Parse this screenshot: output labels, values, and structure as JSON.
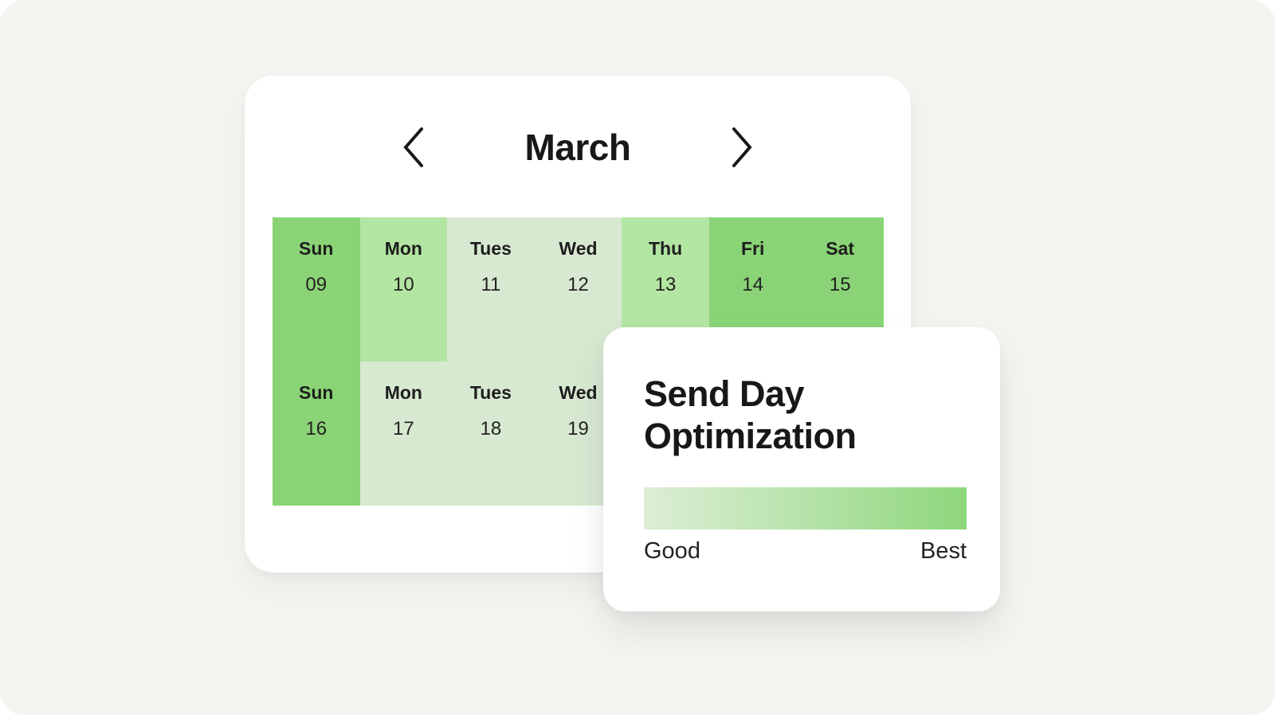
{
  "app": {
    "background_color": "#f5f4f0",
    "card_color": "#ffffff",
    "text_color": "#1f1f1d"
  },
  "calendar": {
    "title": "March",
    "prev_icon": "chevron-left-icon",
    "next_icon": "chevron-right-icon",
    "heat_levels": {
      "best": "#8ad477",
      "better": "#b3e5a3",
      "good": "#d8e9d2"
    },
    "weeks": [
      {
        "cells": [
          {
            "day": "Sun",
            "date": "09",
            "level": "best"
          },
          {
            "day": "Mon",
            "date": "10",
            "level": "better"
          },
          {
            "day": "Tues",
            "date": "11",
            "level": "good"
          },
          {
            "day": "Wed",
            "date": "12",
            "level": "good"
          },
          {
            "day": "Thu",
            "date": "13",
            "level": "better"
          },
          {
            "day": "Fri",
            "date": "14",
            "level": "best"
          },
          {
            "day": "Sat",
            "date": "15",
            "level": "best"
          }
        ]
      },
      {
        "cells": [
          {
            "day": "Sun",
            "date": "16",
            "level": "best"
          },
          {
            "day": "Mon",
            "date": "17",
            "level": "good"
          },
          {
            "day": "Tues",
            "date": "18",
            "level": "good"
          },
          {
            "day": "Wed",
            "date": "19",
            "level": "good"
          }
        ]
      }
    ]
  },
  "optimization": {
    "title": "Send Day Optimization",
    "scale_start_label": "Good",
    "scale_end_label": "Best",
    "gradient_from": "#ddeed6",
    "gradient_to": "#8ed77c"
  }
}
